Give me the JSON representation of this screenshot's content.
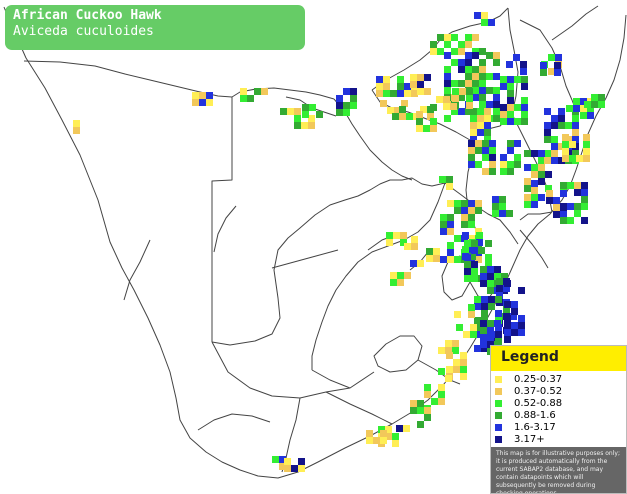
{
  "title": {
    "common_name": "African Cuckoo Hawk",
    "scientific_name": "Aviceda cuculoides"
  },
  "legend": {
    "title": "Legend",
    "items": [
      {
        "label": "0.25-0.37",
        "color": "#ffee55"
      },
      {
        "label": "0.37-0.52",
        "color": "#f2c85a"
      },
      {
        "label": "0.52-0.88",
        "color": "#33ee33"
      },
      {
        "label": "0.88-1.6",
        "color": "#33aa33"
      },
      {
        "label": "1.6-3.17",
        "color": "#2233dd"
      },
      {
        "label": "3.17+",
        "color": "#13138a"
      }
    ],
    "disclaimer": "This map is for illustrative purposes only; it is produced automatically from the current SABAP2 database, and may contain datapoints which will subsequently be removed during checking operations."
  },
  "colors": {
    "title_background": "#66cc66",
    "legend_header": "#ffee00",
    "border_lines": "#444444"
  }
}
